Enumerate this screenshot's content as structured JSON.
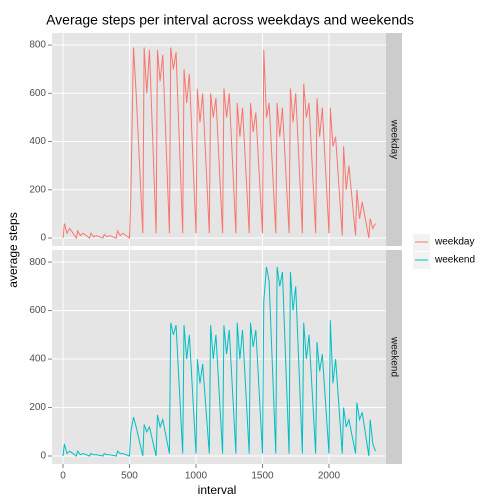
{
  "chart_data": {
    "type": "line",
    "title": "Average steps per interval across weekdays and weekends",
    "x_label": "interval",
    "y_label": "average steps",
    "x": [
      0,
      10,
      30,
      50,
      100,
      110,
      130,
      150,
      200,
      210,
      230,
      250,
      300,
      310,
      330,
      350,
      400,
      410,
      430,
      450,
      500,
      510,
      530,
      550,
      600,
      610,
      630,
      650,
      700,
      710,
      730,
      750,
      800,
      810,
      830,
      850,
      900,
      910,
      930,
      950,
      1000,
      1010,
      1030,
      1050,
      1100,
      1110,
      1130,
      1150,
      1200,
      1210,
      1230,
      1250,
      1300,
      1310,
      1330,
      1350,
      1400,
      1410,
      1430,
      1450,
      1500,
      1510,
      1530,
      1550,
      1600,
      1610,
      1630,
      1650,
      1700,
      1710,
      1730,
      1750,
      1800,
      1810,
      1830,
      1850,
      1900,
      1910,
      1930,
      1950,
      2000,
      2010,
      2030,
      2050,
      2100,
      2110,
      2130,
      2150,
      2200,
      2210,
      2230,
      2250,
      2300,
      2310,
      2330,
      2350
    ],
    "series": [
      {
        "name": "weekday",
        "color": "#F8766D",
        "values": [
          0,
          60,
          20,
          40,
          0,
          30,
          10,
          20,
          0,
          20,
          5,
          10,
          0,
          15,
          5,
          10,
          0,
          30,
          10,
          20,
          0,
          180,
          790,
          600,
          20,
          790,
          600,
          780,
          20,
          780,
          650,
          760,
          20,
          790,
          700,
          770,
          20,
          700,
          560,
          680,
          20,
          620,
          480,
          600,
          20,
          600,
          500,
          580,
          20,
          620,
          500,
          600,
          20,
          560,
          420,
          540,
          20,
          560,
          440,
          520,
          20,
          780,
          500,
          560,
          20,
          560,
          420,
          540,
          20,
          620,
          480,
          600,
          20,
          640,
          500,
          560,
          20,
          580,
          420,
          540,
          20,
          540,
          380,
          420,
          10,
          380,
          200,
          300,
          10,
          200,
          80,
          150,
          0,
          80,
          40,
          60
        ]
      },
      {
        "name": "weekend",
        "color": "#00BFC4",
        "values": [
          0,
          50,
          10,
          20,
          0,
          20,
          5,
          10,
          0,
          10,
          5,
          5,
          0,
          10,
          5,
          5,
          0,
          20,
          10,
          10,
          0,
          100,
          160,
          120,
          0,
          130,
          100,
          120,
          0,
          170,
          120,
          150,
          10,
          550,
          500,
          540,
          10,
          540,
          400,
          500,
          10,
          400,
          300,
          380,
          10,
          540,
          400,
          500,
          10,
          540,
          420,
          520,
          10,
          550,
          400,
          520,
          10,
          550,
          450,
          520,
          10,
          640,
          780,
          720,
          10,
          780,
          700,
          760,
          10,
          760,
          600,
          700,
          10,
          550,
          400,
          500,
          10,
          470,
          350,
          420,
          10,
          560,
          300,
          400,
          10,
          200,
          120,
          150,
          10,
          220,
          150,
          180,
          0,
          150,
          50,
          20
        ]
      }
    ],
    "xlim": [
      -83,
      2429
    ],
    "xticks": [
      0,
      500,
      1000,
      1500,
      2000
    ],
    "ylim": [
      -33,
      850
    ],
    "yticks": [
      0,
      200,
      400,
      600,
      800
    ],
    "grid": true,
    "legend": "right"
  }
}
